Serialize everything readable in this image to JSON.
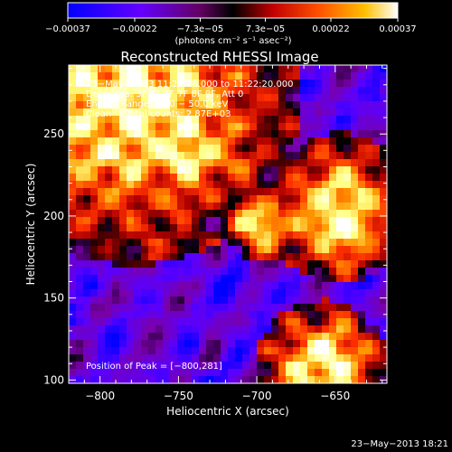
{
  "chart_data": {
    "type": "heatmap",
    "title": "Reconstructed RHESSI Image",
    "xlabel": "Heliocentric X (arcsec)",
    "ylabel": "Heliocentric Y (arcsec)",
    "xlim": [
      -820,
      -617
    ],
    "ylim": [
      98,
      292
    ],
    "x_ticks": [
      {
        "value": -800,
        "label": "−800"
      },
      {
        "value": -750,
        "label": "−750"
      },
      {
        "value": -700,
        "label": "−700"
      },
      {
        "value": -650,
        "label": "−650"
      }
    ],
    "y_ticks": [
      {
        "value": 100,
        "label": "100"
      },
      {
        "value": 150,
        "label": "150"
      },
      {
        "value": 200,
        "label": "200"
      },
      {
        "value": 250,
        "label": "250"
      }
    ],
    "colorbar": {
      "range": [
        -0.00037,
        0.00037
      ],
      "ticks": [
        {
          "value": -0.00037,
          "label": "−0.00037"
        },
        {
          "value": -0.00022,
          "label": "−0.00022"
        },
        {
          "value": -7.3e-05,
          "label": "−7.3e−05"
        },
        {
          "value": 7.3e-05,
          "label": "7.3e−05"
        },
        {
          "value": 0.00022,
          "label": "0.00022"
        },
        {
          "value": 0.00037,
          "label": "0.00037"
        }
      ],
      "units_label": "(photons cm⁻² s⁻¹ asec⁻²)"
    },
    "annotations": [
      "23−May−2013 11:20:16.000 to 11:22:20.000",
      "Detectors: 3F 5F 6F 7F 8F 9F, Att 0",
      "Energy Range: 25.0 − 50.0 keV",
      "Clean     Total counts: 2.87E+03"
    ],
    "peak_label": "Position of Peak = [−800,281]",
    "peak": [
      -800,
      281
    ],
    "colormap_stops": [
      "#0000ff",
      "#5a00ff",
      "#7a00aa",
      "#000000",
      "#b00000",
      "#ff3000",
      "#ff9a00",
      "#ffff80",
      "#ffffff"
    ]
  },
  "footer": {
    "timestamp": "23−May−2013 18:21"
  }
}
